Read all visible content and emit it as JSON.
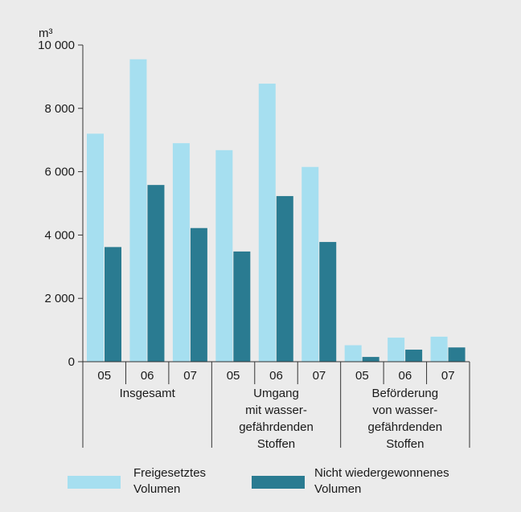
{
  "chart_data": {
    "type": "bar",
    "unit_label": "m³",
    "ylim": [
      0,
      10000
    ],
    "yticks": [
      {
        "value": 0,
        "label": "0"
      },
      {
        "value": 2000,
        "label": "2 000"
      },
      {
        "value": 4000,
        "label": "4 000"
      },
      {
        "value": 6000,
        "label": "6 000"
      },
      {
        "value": 8000,
        "label": "8 000"
      },
      {
        "value": 10000,
        "label": "10 000"
      }
    ],
    "groups": [
      {
        "label_lines": [
          "Insgesamt"
        ],
        "categories": [
          "05",
          "06",
          "07"
        ]
      },
      {
        "label_lines": [
          "Umgang",
          "mit wasser-",
          "gefährdenden",
          "Stoffen"
        ],
        "categories": [
          "05",
          "06",
          "07"
        ]
      },
      {
        "label_lines": [
          "Beförderung",
          "von wasser-",
          "gefährdenden",
          "Stoffen"
        ],
        "categories": [
          "05",
          "06",
          "07"
        ]
      }
    ],
    "series": [
      {
        "name_lines": [
          "Freigesetztes",
          "Volumen"
        ],
        "color": "#a6dff0",
        "values": [
          7200,
          9550,
          6900,
          6680,
          8780,
          6150,
          520,
          760,
          790
        ]
      },
      {
        "name_lines": [
          "Nicht wiedergewonnenes",
          "Volumen"
        ],
        "color": "#2a7b91",
        "values": [
          3620,
          5580,
          4220,
          3480,
          5230,
          3780,
          150,
          380,
          450
        ]
      }
    ],
    "grid": false,
    "legend": "bottom"
  }
}
